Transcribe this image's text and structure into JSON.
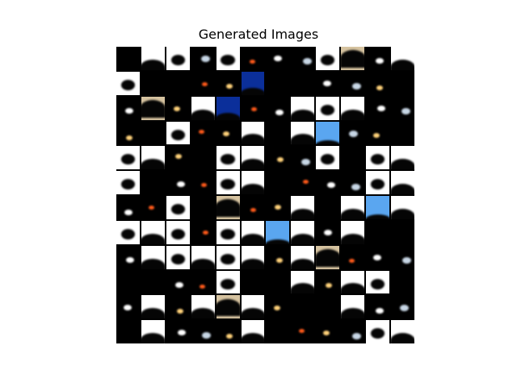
{
  "figure": {
    "title": "Generated Images"
  },
  "tiles": [
    "b",
    "w",
    "w",
    "b",
    "w",
    "b",
    "b",
    "b",
    "w",
    "beige",
    "b",
    "w",
    "w",
    "b",
    "b",
    "b",
    "b",
    "db",
    "b",
    "b",
    "b",
    "b",
    "b",
    "b",
    "b",
    "beige",
    "b",
    "w",
    "db",
    "b",
    "b",
    "w",
    "w",
    "w",
    "b",
    "b",
    "b",
    "b",
    "w",
    "b",
    "b",
    "w",
    "b",
    "w",
    "blue",
    "b",
    "b",
    "b",
    "w",
    "w",
    "b",
    "b",
    "w",
    "w",
    "b",
    "b",
    "w",
    "b",
    "w",
    "w",
    "w",
    "b",
    "b",
    "b",
    "w",
    "w",
    "b",
    "b",
    "b",
    "b",
    "w",
    "w",
    "b",
    "b",
    "w",
    "b",
    "beige",
    "b",
    "b",
    "w",
    "b",
    "w",
    "blue",
    "w",
    "w",
    "w",
    "w",
    "b",
    "w",
    "w",
    "blue",
    "w",
    "b",
    "w",
    "b",
    "b",
    "b",
    "w",
    "w",
    "w",
    "w",
    "w",
    "b",
    "w",
    "beige",
    "b",
    "b",
    "b",
    "b",
    "b",
    "b",
    "b",
    "w",
    "b",
    "b",
    "w",
    "b",
    "w",
    "w",
    "b",
    "b",
    "w",
    "b",
    "w",
    "beige",
    "w",
    "b",
    "b",
    "b",
    "w",
    "b",
    "b",
    "b",
    "w",
    "b",
    "b",
    "b",
    "w",
    "b",
    "b",
    "b",
    "b",
    "w",
    "w"
  ]
}
